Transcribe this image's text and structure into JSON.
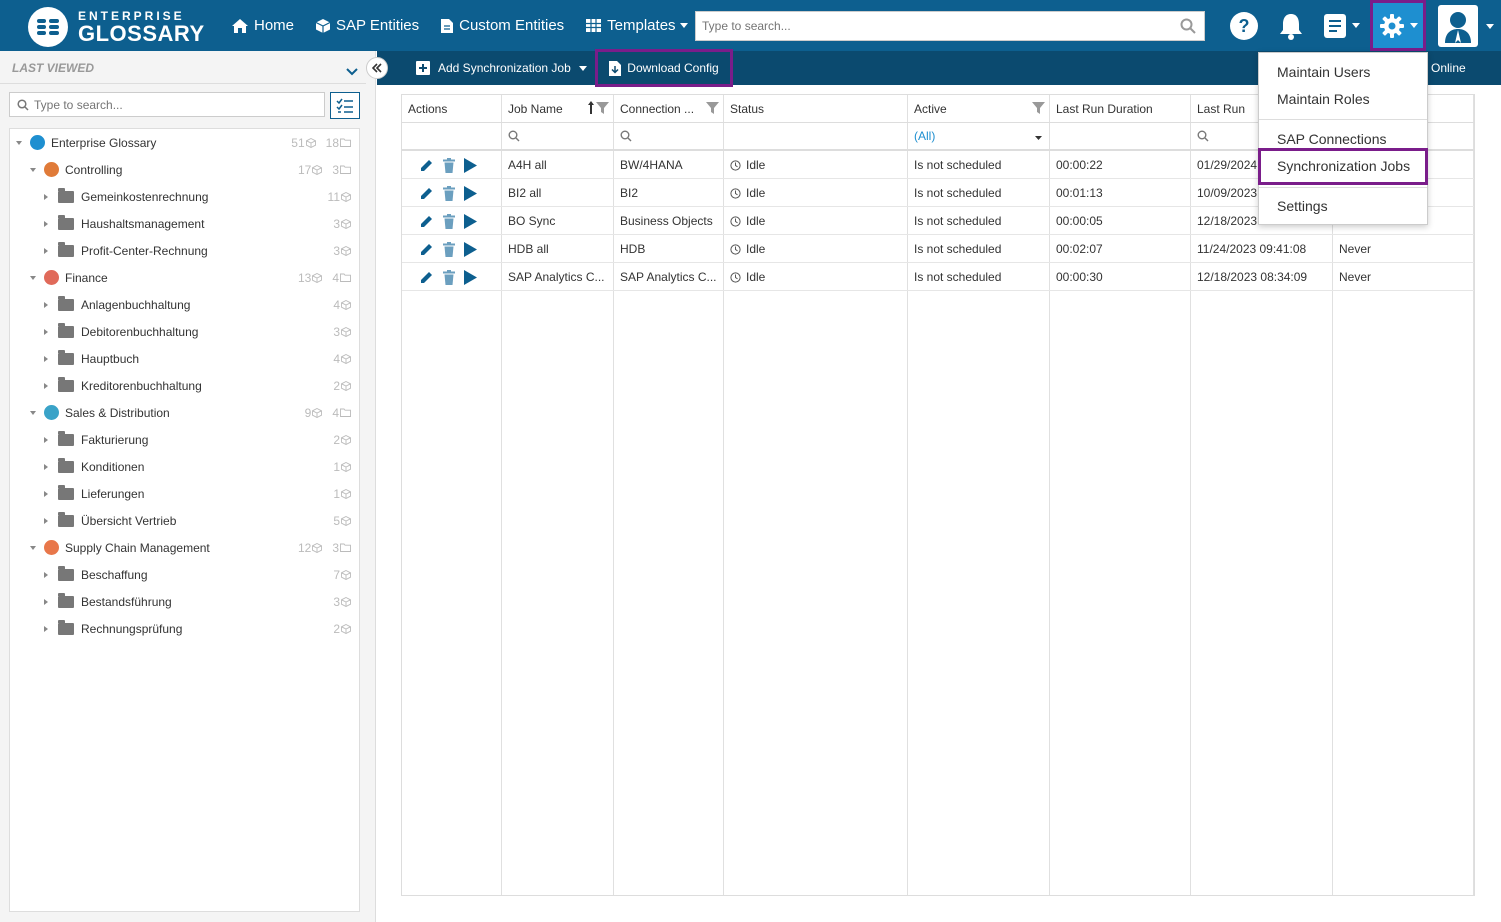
{
  "app": {
    "logo_line1": "ENTERPRISE",
    "logo_line2": "GLOSSARY"
  },
  "nav": {
    "home": "Home",
    "sap_entities": "SAP Entities",
    "custom_entities": "Custom Entities",
    "templates": "Templates"
  },
  "search": {
    "placeholder": "Type to search..."
  },
  "sidebar": {
    "header": "LAST VIEWED",
    "search_placeholder": "Type to search...",
    "tree": [
      {
        "label": "Enterprise Glossary",
        "entities": "51",
        "folders": "18",
        "level": 0
      },
      {
        "label": "Controlling",
        "entities": "17",
        "folders": "3",
        "level": 1
      },
      {
        "label": "Gemeinkostenrechnung",
        "entities": "11",
        "level": 2
      },
      {
        "label": "Haushaltsmanagement",
        "entities": "3",
        "level": 2
      },
      {
        "label": "Profit-Center-Rechnung",
        "entities": "3",
        "level": 2
      },
      {
        "label": "Finance",
        "entities": "13",
        "folders": "4",
        "level": 1
      },
      {
        "label": "Anlagenbuchhaltung",
        "entities": "4",
        "level": 2
      },
      {
        "label": "Debitorenbuchhaltung",
        "entities": "3",
        "level": 2
      },
      {
        "label": "Hauptbuch",
        "entities": "4",
        "level": 2
      },
      {
        "label": "Kreditorenbuchhaltung",
        "entities": "2",
        "level": 2
      },
      {
        "label": "Sales & Distribution",
        "entities": "9",
        "folders": "4",
        "level": 1
      },
      {
        "label": "Fakturierung",
        "entities": "2",
        "level": 2
      },
      {
        "label": "Konditionen",
        "entities": "1",
        "level": 2
      },
      {
        "label": "Lieferungen",
        "entities": "1",
        "level": 2
      },
      {
        "label": "Übersicht Vertrieb",
        "entities": "5",
        "level": 2
      },
      {
        "label": "Supply Chain Management",
        "entities": "12",
        "folders": "3",
        "level": 1
      },
      {
        "label": "Beschaffung",
        "entities": "7",
        "level": 2
      },
      {
        "label": "Bestandsführung",
        "entities": "3",
        "level": 2
      },
      {
        "label": "Rechnungsprüfung",
        "entities": "2",
        "level": 2
      }
    ]
  },
  "toolbar": {
    "add_job": "Add Synchronization Job",
    "download_config": "Download Config",
    "online": "Online"
  },
  "grid": {
    "columns": [
      "Actions",
      "Job Name",
      "Connection ...",
      "Status",
      "Active",
      "Last Run Duration",
      "Last Run",
      ""
    ],
    "active_filter": "(All)",
    "rows": [
      {
        "job": "A4H all",
        "connection": "BW/4HANA",
        "status": "Idle",
        "active": "Is not scheduled",
        "duration": "00:00:22",
        "last_run": "01/29/2024",
        "next": ""
      },
      {
        "job": "BI2 all",
        "connection": "BI2",
        "status": "Idle",
        "active": "Is not scheduled",
        "duration": "00:01:13",
        "last_run": "10/09/2023",
        "next": ""
      },
      {
        "job": "BO Sync",
        "connection": "Business Objects",
        "status": "Idle",
        "active": "Is not scheduled",
        "duration": "00:00:05",
        "last_run": "12/18/2023",
        "next": ""
      },
      {
        "job": "HDB all",
        "connection": "HDB",
        "status": "Idle",
        "active": "Is not scheduled",
        "duration": "00:02:07",
        "last_run": "11/24/2023 09:41:08",
        "next": "Never"
      },
      {
        "job": "SAP Analytics C...",
        "connection": "SAP Analytics C...",
        "status": "Idle",
        "active": "Is not scheduled",
        "duration": "00:00:30",
        "last_run": "12/18/2023 08:34:09",
        "next": "Never"
      }
    ]
  },
  "settings_menu": {
    "items": [
      "Maintain Users",
      "Maintain Roles",
      "SAP Connections",
      "Synchronization Jobs",
      "Settings"
    ]
  },
  "colors": {
    "topbar": "#0d5f8f",
    "toolbar": "#0b4a6f",
    "highlight": "#7a1d8a",
    "gear_bg": "#1e8fd0"
  }
}
